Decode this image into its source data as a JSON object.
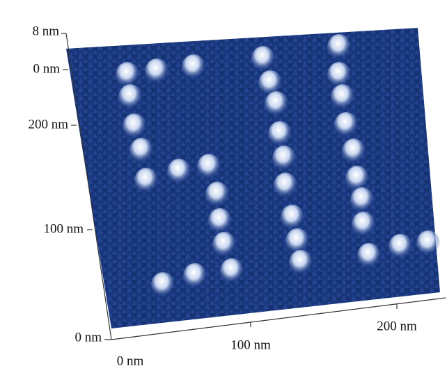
{
  "axes": {
    "z": {
      "top": "8 nm",
      "bottom": "0 nm"
    },
    "y": {
      "top": "200 nm",
      "middle": "100 nm",
      "origin": "0 nm"
    },
    "x": {
      "middle": "100 nm",
      "end": "200 nm",
      "origin": "0 nm"
    }
  }
}
